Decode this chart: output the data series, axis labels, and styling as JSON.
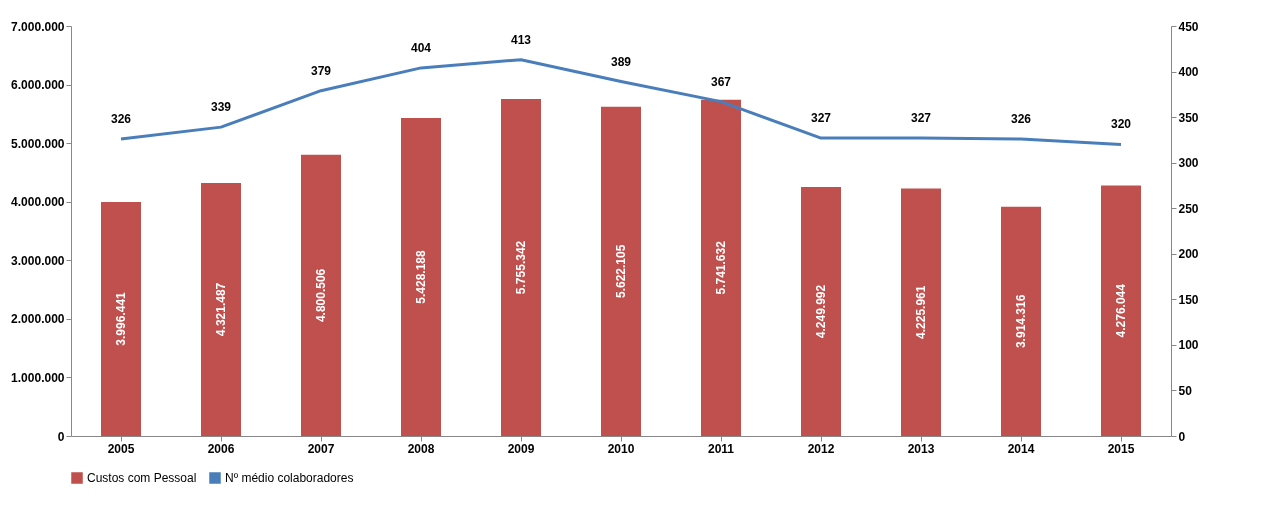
{
  "chart_data": {
    "type": "bar",
    "categories": [
      "2005",
      "2006",
      "2007",
      "2008",
      "2009",
      "2010",
      "2011",
      "2012",
      "2013",
      "2014",
      "2015"
    ],
    "series": [
      {
        "name": "Custos com Pessoal",
        "color": "#c0504d",
        "values": [
          3996441,
          4321487,
          4800506,
          5428188,
          5755342,
          5622105,
          5741632,
          4249992,
          4225961,
          3914316,
          4276044
        ],
        "value_labels": [
          "3.996.441",
          "4.321.487",
          "4.800.506",
          "5.428.188",
          "5.755.342",
          "5.622.105",
          "5.741.632",
          "4.249.992",
          "4.225.961",
          "3.914.316",
          "4.276.044"
        ]
      },
      {
        "name": "Nº médio colaboradores",
        "type": "line",
        "axis": "y2",
        "color": "#4a7ebb",
        "values": [
          326,
          339,
          379,
          404,
          413,
          389,
          367,
          327,
          327,
          326,
          320
        ],
        "value_labels": [
          "326",
          "339",
          "379",
          "404",
          "413",
          "389",
          "367",
          "327",
          "327",
          "326",
          "320"
        ]
      }
    ],
    "ylim": [
      0,
      7000000
    ],
    "yticks": [
      {
        "value": 0,
        "label": "0"
      },
      {
        "value": 1000000,
        "label": "1.000.000"
      },
      {
        "value": 2000000,
        "label": "2.000.000"
      },
      {
        "value": 3000000,
        "label": "3.000.000"
      },
      {
        "value": 4000000,
        "label": "4.000.000"
      },
      {
        "value": 5000000,
        "label": "5.000.000"
      },
      {
        "value": 6000000,
        "label": "6.000.000"
      },
      {
        "value": 7000000,
        "label": "7.000.000"
      }
    ],
    "y2lim": [
      0,
      450
    ],
    "y2ticks": [
      0,
      50,
      100,
      150,
      200,
      250,
      300,
      350,
      400,
      450
    ],
    "legend": "bottom",
    "marker": "none",
    "line_style": "solid"
  }
}
